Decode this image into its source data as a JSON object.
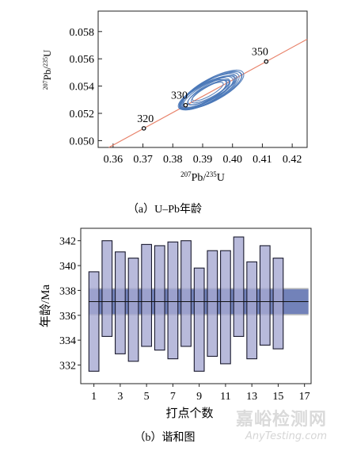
{
  "chart_data": [
    {
      "type": "concordia",
      "xlabel_mass": "207",
      "xlabel_text": "Pb/",
      "xlabel_mass2": "235",
      "xlabel_tail": "U",
      "ylabel_mass": "207",
      "ylabel_text": "Pb/",
      "ylabel_mass2": "235",
      "ylabel_tail": "U",
      "xlim": [
        0.355,
        0.425
      ],
      "ylim": [
        0.0495,
        0.0595
      ],
      "xticks": [
        "0.36",
        "0.37",
        "0.38",
        "0.39",
        "0.40",
        "0.41",
        "0.42"
      ],
      "yticks": [
        "0.050",
        "0.052",
        "0.054",
        "0.056",
        "0.058"
      ],
      "concordia_points": [
        {
          "x": 0.3703,
          "y": 0.0509,
          "age": "320"
        },
        {
          "x": 0.3843,
          "y": 0.0526,
          "age": "330"
        },
        {
          "x": 0.4113,
          "y": 0.0558,
          "age": "350"
        }
      ],
      "ellipse_centre": {
        "x": 0.392,
        "y": 0.0536
      },
      "caption": "（a）U–Pb年龄"
    },
    {
      "type": "bar",
      "ylabel": "年龄/Ma",
      "xlabel": "打点个数",
      "ylim": [
        330.5,
        343
      ],
      "xlim": [
        0,
        17.5
      ],
      "xticks": [
        "1",
        "3",
        "5",
        "7",
        "9",
        "11",
        "13",
        "15",
        "17"
      ],
      "yticks": [
        "332",
        "334",
        "336",
        "338",
        "340",
        "342"
      ],
      "mean_age": 337.1,
      "mean_band": [
        336.1,
        338.1
      ],
      "outer_band": [
        336.0,
        338.2
      ],
      "ranges": [
        [
          331.5,
          339.5
        ],
        [
          334.3,
          342.0
        ],
        [
          332.9,
          341.1
        ],
        [
          332.3,
          340.6
        ],
        [
          333.5,
          341.7
        ],
        [
          333.2,
          341.6
        ],
        [
          332.5,
          341.9
        ],
        [
          333.5,
          342.0
        ],
        [
          331.5,
          339.8
        ],
        [
          332.7,
          341.2
        ],
        [
          332.1,
          341.2
        ],
        [
          334.3,
          342.3
        ],
        [
          332.5,
          340.3
        ],
        [
          333.6,
          341.6
        ],
        [
          333.3,
          340.6
        ]
      ],
      "caption": "（b）谐和图"
    }
  ],
  "watermark": {
    "main": "嘉峪检测网",
    "sub": "AnyTesting.com"
  },
  "colors": {
    "concordia_line": "#e8826a",
    "ellipse": "#4a78b8",
    "bar_fill": "#a6a9d2",
    "bar_edge": "#1a1a2e",
    "outer_band": "#bdbdbd",
    "inner_band": "#5a6fb8"
  }
}
